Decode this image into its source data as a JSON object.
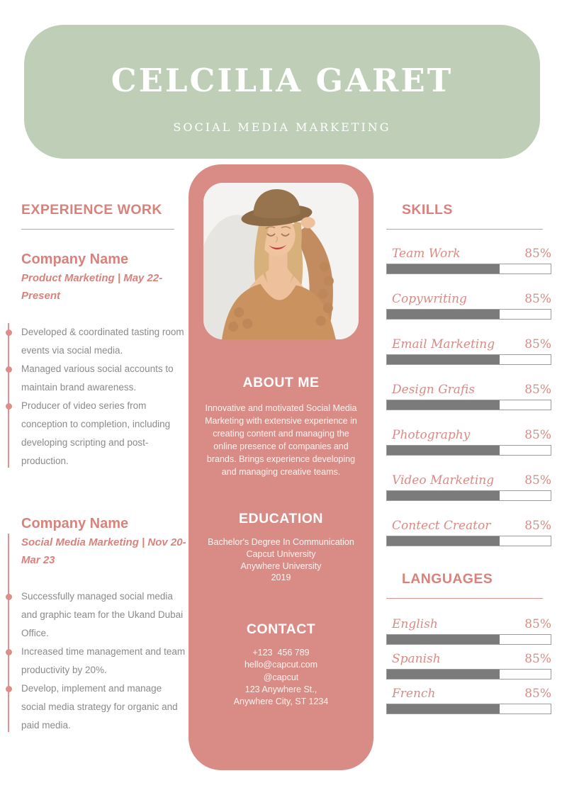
{
  "header": {
    "name": "CELCILIA GARET",
    "role": "SOCIAL MEDIA MARKETING"
  },
  "experience": {
    "heading": "EXPERIENCE WORK",
    "jobs": [
      {
        "company": "Company Name",
        "meta": "Product Marketing | May 22-Present",
        "bullets": [
          "Developed & coordinated tasting room events via social media.",
          "Managed various social accounts to maintain brand awareness.",
          "Producer of video series from conception to completion, including developing scripting and post-production."
        ]
      },
      {
        "company": "Company Name",
        "meta": "Social Media Marketing | Nov 20-Mar 23",
        "bullets": [
          "Successfully managed social media and graphic team for the Ukand Dubai Office.",
          "Increased time management and team productivity by 20%.",
          "Develop, implement and manage social media strategy for organic and paid media."
        ]
      }
    ]
  },
  "profile": {
    "photo_alt": "Portrait photo of woman wearing a wide-brim hat and knit cardigan",
    "about": {
      "heading": "ABOUT ME",
      "text": "Innovative and motivated Social Media Marketing with extensive experience in creating content and managing the online presence of companies and brands. Brings experience developing and managing creative teams."
    },
    "education": {
      "heading": "EDUCATION",
      "lines": [
        "Bachelor's Degree In Communication",
        "Capcut University",
        "Anywhere University",
        "2019"
      ]
    },
    "contact": {
      "heading": "CONTACT",
      "lines": [
        "+123  456 789",
        "hello@capcut.com",
        "@capcut",
        "123 Anywhere St.,",
        "Anywhere City, ST 1234"
      ]
    }
  },
  "skills": {
    "heading": "SKILLS",
    "items": [
      {
        "label": "Team Work",
        "percent": "85%",
        "fill": 69
      },
      {
        "label": "Copywriting",
        "percent": "85%",
        "fill": 69
      },
      {
        "label": "Email Marketing",
        "percent": "85%",
        "fill": 69
      },
      {
        "label": "Design Grafis",
        "percent": "85%",
        "fill": 69
      },
      {
        "label": "Photography",
        "percent": "85%",
        "fill": 69
      },
      {
        "label": "Video Marketing",
        "percent": "85%",
        "fill": 69
      },
      {
        "label": "Contect Creator",
        "percent": "85%",
        "fill": 69
      }
    ]
  },
  "languages": {
    "heading": "LANGUAGES",
    "items": [
      {
        "label": "English",
        "percent": "85%",
        "fill": 69
      },
      {
        "label": "Spanish",
        "percent": "85%",
        "fill": 69
      },
      {
        "label": "French",
        "percent": "85%",
        "fill": 69
      }
    ]
  },
  "colors": {
    "header_green": "#bfceb7",
    "panel_pink": "#d98c86",
    "accent_pink_text": "#d9827c",
    "timeline_pink": "#dd8e88",
    "bar_fill_gray": "#7b7b7b",
    "body_text_gray": "#8a8a8a"
  }
}
